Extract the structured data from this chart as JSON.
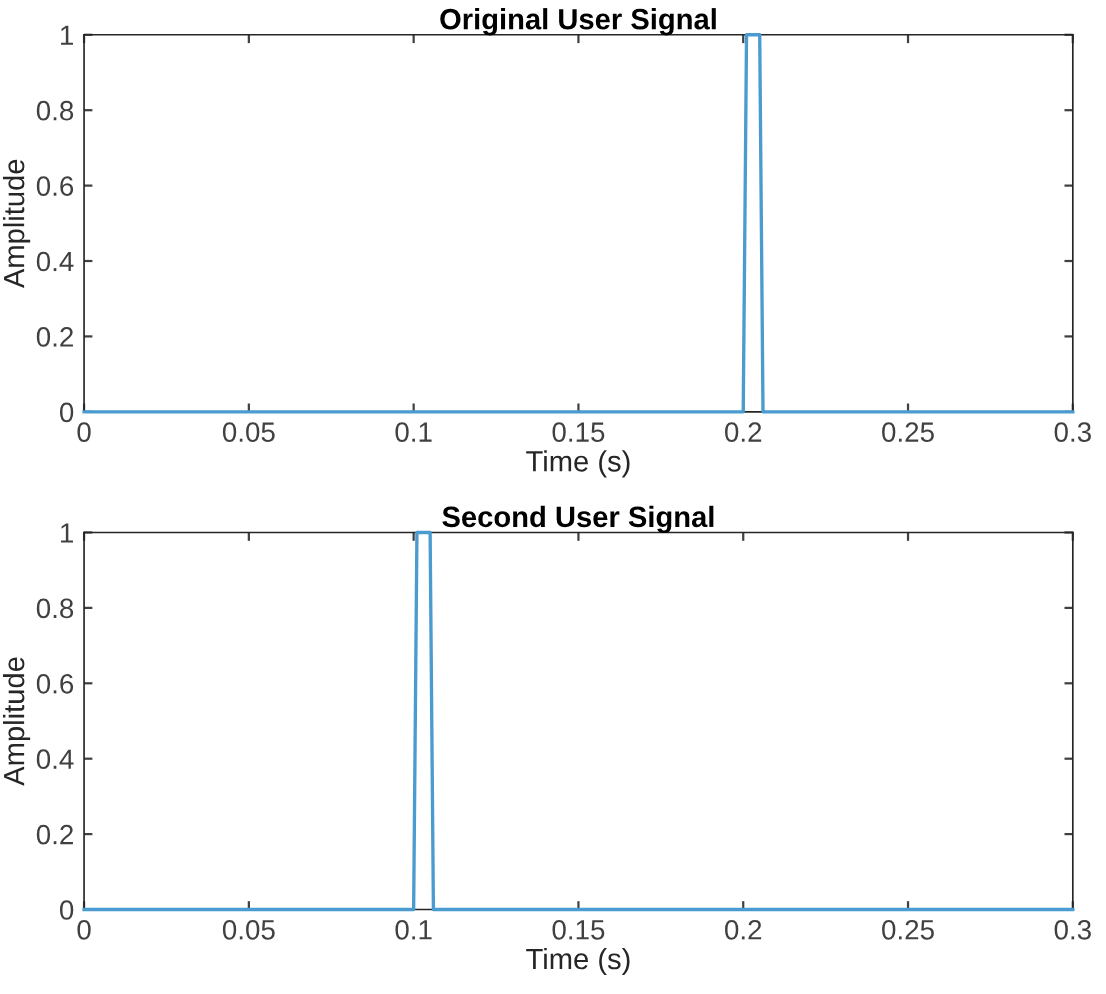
{
  "chart_data": [
    {
      "type": "line",
      "title": "Original User Signal",
      "xlabel": "Time (s)",
      "ylabel": "Amplitude",
      "x": [
        0,
        0.2,
        0.201,
        0.205,
        0.206,
        0.3
      ],
      "series": [
        {
          "color": "#4a9bd0",
          "values": [
            0,
            0,
            1,
            1,
            0,
            0
          ]
        }
      ],
      "xlim": [
        0,
        0.3
      ],
      "ylim": [
        0,
        1
      ],
      "xticks": [
        0,
        0.05,
        0.1,
        0.15,
        0.2,
        0.25,
        0.3
      ],
      "yticks": [
        0,
        0.2,
        0.4,
        0.6,
        0.8,
        1
      ],
      "grid": false,
      "legend": false
    },
    {
      "type": "line",
      "title": "Second User Signal",
      "xlabel": "Time (s)",
      "ylabel": "Amplitude",
      "x": [
        0,
        0.1,
        0.101,
        0.105,
        0.106,
        0.3
      ],
      "series": [
        {
          "color": "#4a9bd0",
          "values": [
            0,
            0,
            1,
            1,
            0,
            0
          ]
        }
      ],
      "xlim": [
        0,
        0.3
      ],
      "ylim": [
        0,
        1
      ],
      "xticks": [
        0,
        0.05,
        0.1,
        0.15,
        0.2,
        0.25,
        0.3
      ],
      "yticks": [
        0,
        0.2,
        0.4,
        0.6,
        0.8,
        1
      ],
      "grid": false,
      "legend": false
    }
  ]
}
